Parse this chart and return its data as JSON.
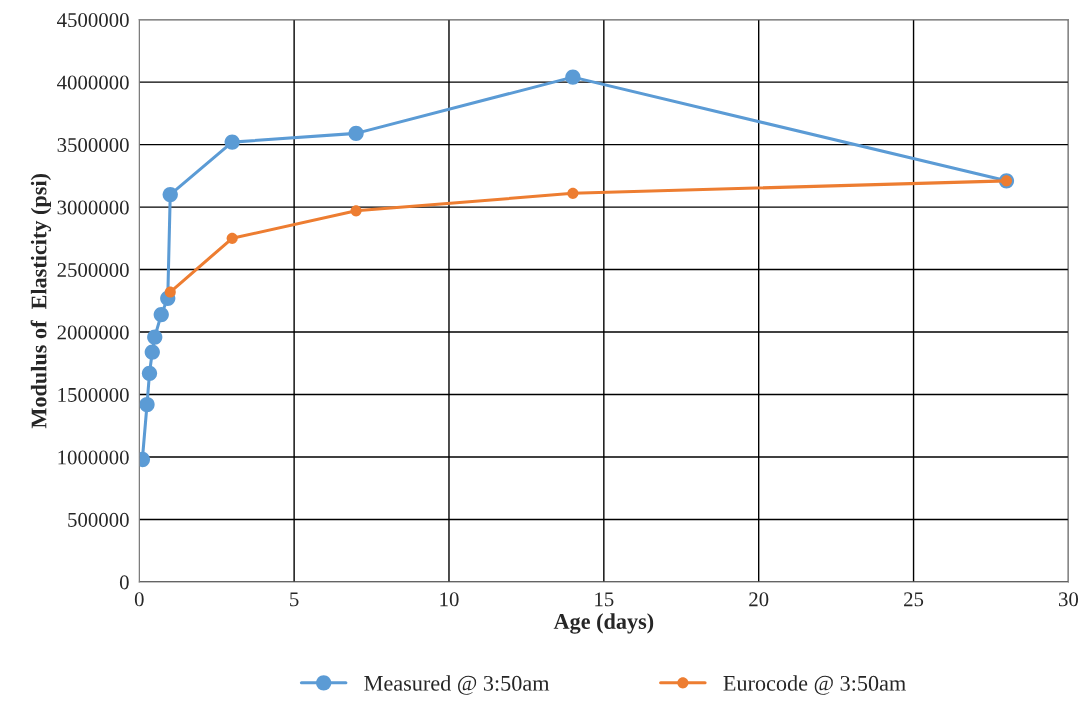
{
  "chart_data": {
    "type": "line",
    "xlabel": "Age (days)",
    "ylabel": "Modulus of  Elasticity (psi)",
    "series": [
      {
        "name": "Measured @ 3:50am",
        "color": "#5b9bd5",
        "x": [
          0.1,
          0.25,
          0.33,
          0.42,
          0.5,
          0.71,
          0.92,
          1,
          3,
          7,
          14,
          28
        ],
        "values": [
          980000,
          1420000,
          1670000,
          1840000,
          1960000,
          2140000,
          2270000,
          3100000,
          3520000,
          3590000,
          4040000,
          3210000
        ]
      },
      {
        "name": "Eurocode @ 3:50am",
        "color": "#ed7d31",
        "x": [
          1,
          3,
          7,
          14,
          28
        ],
        "values": [
          2320000,
          2750000,
          2970000,
          3110000,
          3210000
        ]
      }
    ],
    "xlim": [
      0,
      30
    ],
    "xticks": [
      0,
      5,
      10,
      15,
      20,
      25,
      30
    ],
    "ylim": [
      0,
      4500000
    ],
    "yticks": [
      0,
      500000,
      1000000,
      1500000,
      2000000,
      2500000,
      3000000,
      3500000,
      4000000,
      4500000
    ],
    "grid": true,
    "legend": "bottom",
    "marker": "circle",
    "line_style": "solid"
  }
}
